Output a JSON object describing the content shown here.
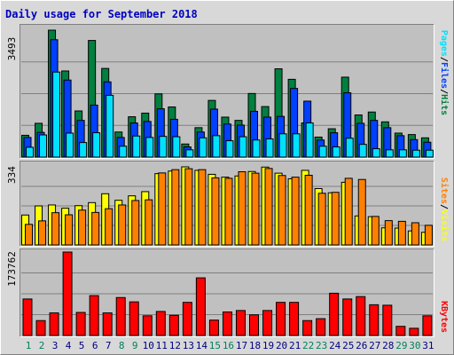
{
  "title": "Daily usage for September 2018",
  "colors": {
    "hits": "#008040",
    "files": "#0040ff",
    "pages": "#00e0ff",
    "visits": "#ffff00",
    "sites": "#ff8000",
    "kbytes": "#ff0000",
    "weekend_day": "#00805c",
    "weekday": "#000080",
    "panel": "#c0c0c0",
    "frame": "#d8d8d8"
  },
  "right_labels": {
    "pages": "Pages",
    "files": "Files",
    "hits": "Hits",
    "visits": "Visits",
    "sites": "Sites",
    "kbytes": "KBytes",
    "sep": "/"
  },
  "chart_data": [
    {
      "type": "bar",
      "panel": "hits-files-pages",
      "ymax_label": "3493",
      "ylim": [
        0,
        3493
      ],
      "categories": [
        "1",
        "2",
        "3",
        "4",
        "5",
        "6",
        "7",
        "8",
        "9",
        "10",
        "11",
        "12",
        "13",
        "14",
        "15",
        "16",
        "17",
        "18",
        "19",
        "20",
        "21",
        "22",
        "23",
        "24",
        "25",
        "26",
        "27",
        "28",
        "29",
        "30",
        "31"
      ],
      "series": [
        {
          "name": "Hits",
          "values": [
            600,
            930,
            3493,
            2370,
            1270,
            3210,
            2440,
            690,
            1110,
            1210,
            1740,
            1380,
            360,
            810,
            1560,
            1100,
            1010,
            1750,
            1390,
            2430,
            2140,
            940,
            550,
            780,
            2200,
            1160,
            1240,
            970,
            660,
            620,
            530
          ]
        },
        {
          "name": "Files",
          "values": [
            540,
            680,
            3230,
            2120,
            1010,
            1430,
            2070,
            540,
            940,
            980,
            1330,
            1040,
            280,
            690,
            1320,
            910,
            880,
            1260,
            1100,
            1120,
            1890,
            1540,
            470,
            670,
            1770,
            930,
            1010,
            810,
            590,
            480,
            410
          ]
        },
        {
          "name": "Pages",
          "values": [
            270,
            610,
            2340,
            660,
            400,
            670,
            1700,
            300,
            580,
            540,
            570,
            560,
            200,
            530,
            590,
            450,
            560,
            470,
            500,
            640,
            640,
            940,
            300,
            280,
            520,
            350,
            230,
            200,
            200,
            190,
            190
          ]
        }
      ]
    },
    {
      "type": "bar",
      "panel": "visits-sites",
      "ymax_label": "334",
      "ylim": [
        0,
        334
      ],
      "categories": [
        "1",
        "2",
        "3",
        "4",
        "5",
        "6",
        "7",
        "8",
        "9",
        "10",
        "11",
        "12",
        "13",
        "14",
        "15",
        "16",
        "17",
        "18",
        "19",
        "20",
        "21",
        "22",
        "23",
        "24",
        "25",
        "26",
        "27",
        "28",
        "29",
        "30",
        "31"
      ],
      "series": [
        {
          "name": "Visits",
          "values": [
            128,
            167,
            171,
            157,
            168,
            181,
            219,
            191,
            210,
            228,
            305,
            316,
            334,
            319,
            302,
            290,
            295,
            314,
            333,
            307,
            283,
            319,
            241,
            223,
            268,
            124,
            121,
            73,
            72,
            60,
            54
          ]
        },
        {
          "name": "Sites",
          "values": [
            88,
            103,
            138,
            129,
            149,
            139,
            155,
            171,
            190,
            193,
            308,
            322,
            326,
            322,
            287,
            285,
            313,
            307,
            327,
            297,
            290,
            298,
            221,
            225,
            285,
            280,
            122,
            104,
            101,
            95,
            84
          ]
        }
      ]
    },
    {
      "type": "bar",
      "panel": "kbytes",
      "ymax_label": "173762",
      "ylim": [
        0,
        173762
      ],
      "categories": [
        "1",
        "2",
        "3",
        "4",
        "5",
        "6",
        "7",
        "8",
        "9",
        "10",
        "11",
        "12",
        "13",
        "14",
        "15",
        "16",
        "17",
        "18",
        "19",
        "20",
        "21",
        "22",
        "23",
        "24",
        "25",
        "26",
        "27",
        "28",
        "29",
        "30",
        "31"
      ],
      "series": [
        {
          "name": "KBytes",
          "values": [
            76000,
            31000,
            47000,
            173762,
            48000,
            83000,
            47000,
            79000,
            70000,
            41000,
            50000,
            42000,
            69000,
            120000,
            32000,
            49000,
            52000,
            43000,
            52000,
            69000,
            69000,
            31000,
            35000,
            88000,
            76000,
            81000,
            64000,
            63000,
            19000,
            15000,
            41000
          ]
        }
      ]
    }
  ]
}
